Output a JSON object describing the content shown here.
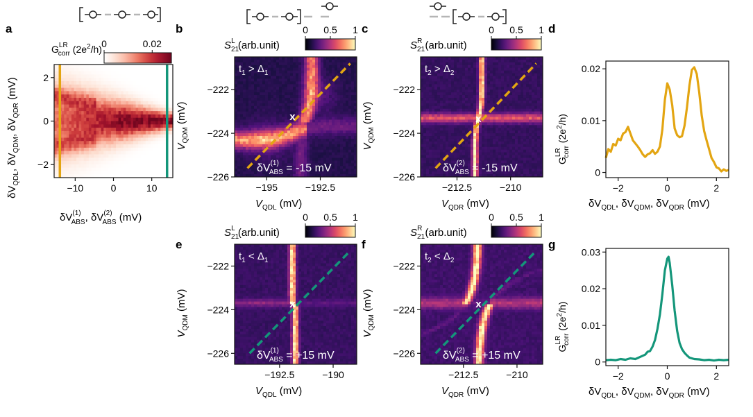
{
  "panel_labels": {
    "a": "a",
    "b": "b",
    "c": "c",
    "d": "d",
    "e": "e",
    "f": "f",
    "g": "g"
  },
  "colors": {
    "orange": "#e3a512",
    "green": "#14967a",
    "dash_gray": "#b5b5b5"
  },
  "chart_data": [
    {
      "id": "a",
      "type": "heatmap",
      "colormap": "white-to-dark-red",
      "xlabel": {
        "t1": "δV",
        "sup1": "(1)",
        "sub1": "ABS",
        "t2": ", δV",
        "sup2": "(2)",
        "sub2": "ABS",
        "t3": " (mV)"
      },
      "ylabel": {
        "t1": "δV",
        "s1": "QDL",
        "t2": ", δV",
        "s2": "QDM",
        "t3": ", δV",
        "s3": "QDR",
        "t4": " (mV)"
      },
      "xlim": [
        -15.5,
        15.5
      ],
      "ylim": [
        -2.6,
        2.6
      ],
      "x_ticks": [
        {
          "v": -10,
          "l": "−10"
        },
        {
          "v": 0,
          "l": "0"
        },
        {
          "v": 10,
          "l": "10"
        }
      ],
      "y_ticks": [
        {
          "v": -2,
          "l": "−2"
        },
        {
          "v": 0,
          "l": "0"
        },
        {
          "v": 2,
          "l": "2"
        }
      ],
      "colorbar": {
        "label": {
          "t1": "G",
          "sup": "LR",
          "sub": "corr",
          "t2": " (2e",
          "sup2": "2",
          "t3": "/h)"
        },
        "ticks": [
          {
            "v": 0,
            "l": "0"
          },
          {
            "v": 0.02,
            "l": "0.02"
          }
        ],
        "range": [
          0,
          0.028
        ]
      },
      "vlines": [
        {
          "x": -14,
          "color": "#e3a512"
        },
        {
          "x": 14,
          "color": "#14967a"
        }
      ]
    },
    {
      "id": "b",
      "type": "heatmap",
      "colormap": "magma",
      "annotation": {
        "t": "t",
        "s1": "1",
        "mid": " > Δ",
        "s2": "1"
      },
      "delta_label": {
        "t": "δV",
        "sup": "(1)",
        "sub": "ABS",
        "val": " = -15 mV"
      },
      "xlabel": {
        "v": "V",
        "s": "QDL",
        "u": " (mV)"
      },
      "ylabel": {
        "v": "V",
        "s": "QDM",
        "u": " (mV)"
      },
      "xlim": [
        -196.5,
        -190.8
      ],
      "ylim": [
        -226.0,
        -220.5
      ],
      "x_ticks": [
        {
          "v": -195,
          "l": "−195"
        },
        {
          "v": -192.5,
          "l": "−192.5"
        }
      ],
      "y_ticks": [
        {
          "v": -222,
          "l": "−222"
        },
        {
          "v": -224,
          "l": "−224"
        },
        {
          "v": -226,
          "l": "−226"
        }
      ],
      "colorbar": {
        "label": {
          "s": "S",
          "sub": "21",
          "sup": "L",
          "u": " (arb.unit)"
        },
        "ticks": [
          {
            "v": 0,
            "l": "0"
          },
          {
            "v": 0.5,
            "l": "0.5"
          },
          {
            "v": 1,
            "l": "1"
          }
        ]
      },
      "dashed_line": {
        "color": "#e3a512",
        "x": [
          -195.9,
          -191.1
        ],
        "y": [
          -225.6,
          -220.8
        ]
      },
      "marker": {
        "x": -193.8,
        "y": -223.2,
        "label": "x"
      },
      "schematic": {
        "bracket_l": "[",
        "bracket_r": "]"
      }
    },
    {
      "id": "c",
      "type": "heatmap",
      "colormap": "magma",
      "annotation": {
        "t": "t",
        "s1": "2",
        "mid": " > Δ",
        "s2": "2"
      },
      "delta_label": {
        "t": "δV",
        "sup": "(2)",
        "sub": "ABS",
        "val": " = -15 mV"
      },
      "xlabel": {
        "v": "V",
        "s": "QDR",
        "u": " (mV)"
      },
      "ylabel": {
        "v": "V",
        "s": "QDM",
        "u": " (mV)"
      },
      "xlim": [
        -214.2,
        -208.5
      ],
      "ylim": [
        -226.0,
        -220.5
      ],
      "x_ticks": [
        {
          "v": -212.5,
          "l": "−212.5"
        },
        {
          "v": -210,
          "l": "−210"
        }
      ],
      "y_ticks": [
        {
          "v": -222,
          "l": "−222"
        },
        {
          "v": -224,
          "l": "−224"
        },
        {
          "v": -226,
          "l": "−226"
        }
      ],
      "colorbar": {
        "label": {
          "s": "S",
          "sub": "21",
          "sup": "R",
          "u": " (arb.unit)"
        },
        "ticks": [
          {
            "v": 0,
            "l": "0"
          },
          {
            "v": 0.5,
            "l": "0.5"
          },
          {
            "v": 1,
            "l": "1"
          }
        ]
      },
      "dashed_line": {
        "color": "#e3a512",
        "x": [
          -213.5,
          -208.8
        ],
        "y": [
          -225.6,
          -220.8
        ]
      },
      "marker": {
        "x": -211.5,
        "y": -223.3,
        "label": "x"
      },
      "schematic": {
        "bracket_l": "[",
        "bracket_r": "]"
      }
    },
    {
      "id": "d",
      "type": "line",
      "color": "#e3a512",
      "xlim": [
        -2.5,
        2.5
      ],
      "ylim": [
        -0.001,
        0.0215
      ],
      "x_ticks": [
        {
          "v": -2,
          "l": "−2"
        },
        {
          "v": 0,
          "l": "0"
        },
        {
          "v": 2,
          "l": "2"
        }
      ],
      "y_ticks": [
        {
          "v": 0,
          "l": "0"
        },
        {
          "v": 0.01,
          "l": "0.01"
        },
        {
          "v": 0.02,
          "l": "0.02"
        }
      ],
      "xlabel": {
        "t1": "δV",
        "s1": "QDL",
        "t2": ", δV",
        "s2": "QDM",
        "t3": ", δV",
        "s3": "QDR",
        "t4": "  (mV)"
      },
      "ylabel": {
        "t": "G",
        "sup": "LR",
        "sub": "corr",
        "t2": " (2e",
        "sup2": "2",
        "t3": "/h)"
      },
      "x": [
        -2.5,
        -2.4,
        -2.3,
        -2.2,
        -2.1,
        -2.0,
        -1.9,
        -1.8,
        -1.7,
        -1.6,
        -1.5,
        -1.4,
        -1.3,
        -1.2,
        -1.1,
        -1.0,
        -0.9,
        -0.8,
        -0.7,
        -0.6,
        -0.5,
        -0.4,
        -0.3,
        -0.2,
        -0.1,
        0.0,
        0.1,
        0.2,
        0.3,
        0.4,
        0.5,
        0.6,
        0.7,
        0.8,
        0.9,
        1.0,
        1.1,
        1.2,
        1.3,
        1.4,
        1.5,
        1.6,
        1.7,
        1.8,
        1.9,
        2.0,
        2.1,
        2.2,
        2.3,
        2.4,
        2.5
      ],
      "y": [
        0.0028,
        0.0045,
        0.004,
        0.0055,
        0.0052,
        0.0065,
        0.0062,
        0.0075,
        0.0078,
        0.0088,
        0.0075,
        0.0062,
        0.0056,
        0.005,
        0.0043,
        0.0035,
        0.003,
        0.0035,
        0.0037,
        0.0043,
        0.0036,
        0.004,
        0.005,
        0.0083,
        0.014,
        0.0172,
        0.016,
        0.013,
        0.0085,
        0.0072,
        0.0068,
        0.007,
        0.009,
        0.0125,
        0.0168,
        0.0198,
        0.0203,
        0.019,
        0.0155,
        0.011,
        0.008,
        0.0062,
        0.0045,
        0.0028,
        0.002,
        0.001,
        0.0008,
        0.0002,
        0.0006,
        0.0003,
        0.0005
      ]
    },
    {
      "id": "e",
      "type": "heatmap",
      "colormap": "magma",
      "annotation": {
        "t": "t",
        "s1": "1",
        "mid": " < Δ",
        "s2": "1"
      },
      "delta_label": {
        "t": "δV",
        "sup": "(1)",
        "sub": "ABS",
        "val": " = +15 mV"
      },
      "xlabel": {
        "v": "V",
        "s": "QDL",
        "u": " (mV)"
      },
      "ylabel": {
        "v": "V",
        "s": "QDM",
        "u": " (mV)"
      },
      "xlim": [
        -194.6,
        -188.9
      ],
      "ylim": [
        -226.5,
        -221.0
      ],
      "x_ticks": [
        {
          "v": -192.5,
          "l": "−192.5"
        },
        {
          "v": -190,
          "l": "−190"
        }
      ],
      "y_ticks": [
        {
          "v": -222,
          "l": "−222"
        },
        {
          "v": -224,
          "l": "−224"
        },
        {
          "v": -226,
          "l": "−226"
        }
      ],
      "colorbar": {
        "label": {
          "s": "S",
          "sub": "21",
          "sup": "L",
          "u": " (arb.unit)"
        },
        "ticks": [
          {
            "v": 0,
            "l": "0"
          },
          {
            "v": 0.5,
            "l": "0.5"
          },
          {
            "v": 1,
            "l": "1"
          }
        ]
      },
      "dashed_line": {
        "color": "#14967a",
        "x": [
          -193.9,
          -189.2
        ],
        "y": [
          -226.0,
          -221.3
        ]
      },
      "marker": {
        "x": -191.9,
        "y": -223.7,
        "label": "x"
      }
    },
    {
      "id": "f",
      "type": "heatmap",
      "colormap": "magma",
      "annotation": {
        "t": "t",
        "s1": "2",
        "mid": " < Δ",
        "s2": "2"
      },
      "delta_label": {
        "t": "δV",
        "sup": "(2)",
        "sub": "ABS",
        "val": " = +15 mV"
      },
      "xlabel": {
        "v": "V",
        "s": "QDR",
        "u": " (mV)"
      },
      "ylabel": {
        "v": "V",
        "s": "QDM",
        "u": " (mV)"
      },
      "xlim": [
        -214.5,
        -208.8
      ],
      "ylim": [
        -226.5,
        -221.0
      ],
      "x_ticks": [
        {
          "v": -212.5,
          "l": "−212.5"
        },
        {
          "v": -210,
          "l": "−210"
        }
      ],
      "y_ticks": [
        {
          "v": -222,
          "l": "−222"
        },
        {
          "v": -224,
          "l": "−224"
        },
        {
          "v": -226,
          "l": "−226"
        }
      ],
      "colorbar": {
        "label": {
          "s": "S",
          "sub": "21",
          "sup": "R",
          "u": " (arb.unit)"
        },
        "ticks": [
          {
            "v": 0,
            "l": "0"
          },
          {
            "v": 0.5,
            "l": "0.5"
          },
          {
            "v": 1,
            "l": "1"
          }
        ]
      },
      "dashed_line": {
        "color": "#14967a",
        "x": [
          -213.8,
          -209.1
        ],
        "y": [
          -226.0,
          -221.3
        ]
      },
      "marker": {
        "x": -211.8,
        "y": -223.7,
        "label": "x"
      }
    },
    {
      "id": "g",
      "type": "line",
      "color": "#14967a",
      "xlim": [
        -2.5,
        2.5
      ],
      "ylim": [
        -0.001,
        0.031
      ],
      "x_ticks": [
        {
          "v": -2,
          "l": "−2"
        },
        {
          "v": 0,
          "l": "0"
        },
        {
          "v": 2,
          "l": "2"
        }
      ],
      "y_ticks": [
        {
          "v": 0,
          "l": "0"
        },
        {
          "v": 0.01,
          "l": "0.01"
        },
        {
          "v": 0.02,
          "l": "0.02"
        },
        {
          "v": 0.03,
          "l": "0.03"
        }
      ],
      "xlabel": {
        "t1": "δV",
        "s1": "QDL",
        "t2": ", δV",
        "s2": "QDM",
        "t3": ", δV",
        "s3": "QDR",
        "t4": "  (mV)"
      },
      "ylabel": {
        "t": "G",
        "sup": "LR",
        "sub": "corr",
        "t2": " (2e",
        "sup2": "2",
        "t3": "/h)"
      },
      "x": [
        -2.5,
        -2.3,
        -2.1,
        -1.9,
        -1.7,
        -1.5,
        -1.3,
        -1.1,
        -0.9,
        -0.8,
        -0.7,
        -0.6,
        -0.5,
        -0.4,
        -0.3,
        -0.2,
        -0.1,
        0.0,
        0.05,
        0.1,
        0.2,
        0.3,
        0.4,
        0.5,
        0.6,
        0.7,
        0.8,
        0.9,
        1.1,
        1.3,
        1.5,
        1.7,
        1.9,
        2.1,
        2.3,
        2.5
      ],
      "y": [
        0.0005,
        0.0006,
        0.0005,
        0.0008,
        0.0006,
        0.001,
        0.0008,
        0.0014,
        0.002,
        0.0028,
        0.003,
        0.0042,
        0.006,
        0.009,
        0.013,
        0.0185,
        0.025,
        0.0282,
        0.0287,
        0.027,
        0.021,
        0.014,
        0.0085,
        0.0052,
        0.0035,
        0.0025,
        0.0018,
        0.0012,
        0.0008,
        0.0007,
        0.0005,
        0.0006,
        0.0004,
        0.0006,
        0.0005,
        0.0006
      ]
    }
  ]
}
